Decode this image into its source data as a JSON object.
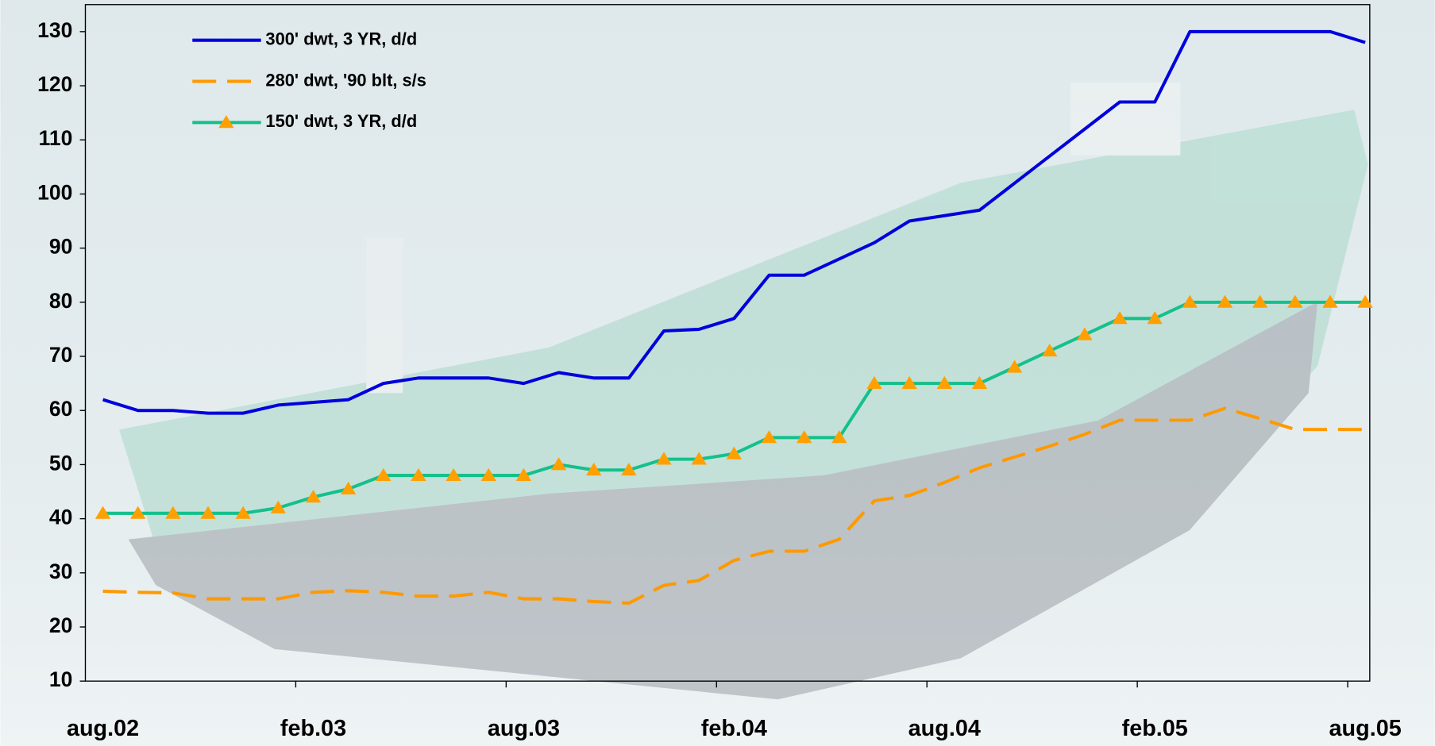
{
  "chart_data": {
    "type": "line",
    "categories": [
      "aug.02",
      null,
      null,
      null,
      null,
      null,
      "feb.03",
      null,
      null,
      null,
      null,
      null,
      "aug.03",
      null,
      null,
      null,
      null,
      null,
      "feb.04",
      null,
      null,
      null,
      null,
      null,
      "aug.04",
      null,
      null,
      null,
      null,
      null,
      "feb.05",
      null,
      null,
      null,
      null,
      null,
      "aug.05"
    ],
    "series": [
      {
        "name": "300' dwt, 3 YR, d/d",
        "color": "#0000dd",
        "style": "solid",
        "marker": null,
        "values": [
          62,
          60,
          60,
          59.5,
          59.5,
          61,
          61.5,
          62,
          65,
          66,
          66,
          66,
          65,
          67,
          66,
          66,
          74.7,
          75,
          77,
          85,
          85,
          88,
          91,
          95,
          96,
          97,
          102,
          107,
          112,
          117,
          117,
          130,
          130,
          130,
          130,
          130,
          128
        ]
      },
      {
        "name": "280' dwt, '90 blt, s/s",
        "color": "#ff9900",
        "style": "dashed",
        "marker": null,
        "values": [
          26.6,
          26.4,
          26.3,
          25.2,
          25.2,
          25.2,
          26.4,
          26.7,
          26.4,
          25.7,
          25.7,
          26.4,
          25.2,
          25.2,
          24.7,
          24.4,
          27.7,
          28.6,
          32.3,
          34,
          34,
          36.2,
          43.3,
          44.3,
          46.7,
          49.4,
          51.4,
          53.4,
          55.6,
          58.2,
          58.2,
          58.2,
          60.4,
          58.5,
          56.5,
          56.5,
          56.5
        ]
      },
      {
        "name": "150' dwt, 3 YR, d/d",
        "color": "#14c08c",
        "style": "solid",
        "marker": "triangle",
        "marker_color": "#ffa000",
        "values": [
          41,
          41,
          41,
          41,
          41,
          42,
          44,
          45.5,
          48,
          48,
          48,
          48,
          48,
          50,
          49,
          49,
          51,
          51,
          52,
          55,
          55,
          55,
          65,
          65,
          65,
          65,
          68,
          71,
          74,
          77,
          77,
          80,
          80,
          80,
          80,
          80,
          80
        ]
      }
    ],
    "ylim": [
      10,
      135
    ],
    "yticks": [
      10,
      20,
      30,
      40,
      50,
      60,
      70,
      80,
      90,
      100,
      110,
      120,
      130
    ],
    "legend": "upper-left"
  }
}
